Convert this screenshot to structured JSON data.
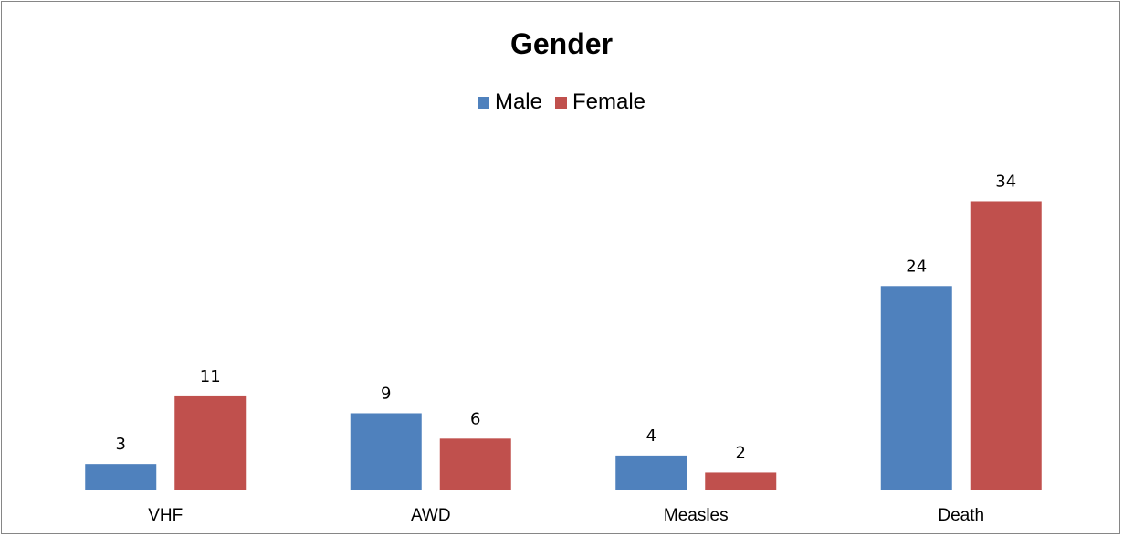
{
  "chart_data": {
    "type": "bar",
    "title": "Gender",
    "categories": [
      "VHF",
      "AWD",
      "Measles",
      "Death"
    ],
    "series": [
      {
        "name": "Male",
        "color": "#4f81bd",
        "values": [
          3,
          9,
          4,
          24
        ]
      },
      {
        "name": "Female",
        "color": "#c0504d",
        "values": [
          11,
          6,
          2,
          34
        ]
      }
    ],
    "xlabel": "",
    "ylabel": "",
    "ylim": [
      0,
      40
    ],
    "grid": false,
    "legend": "top-center"
  }
}
